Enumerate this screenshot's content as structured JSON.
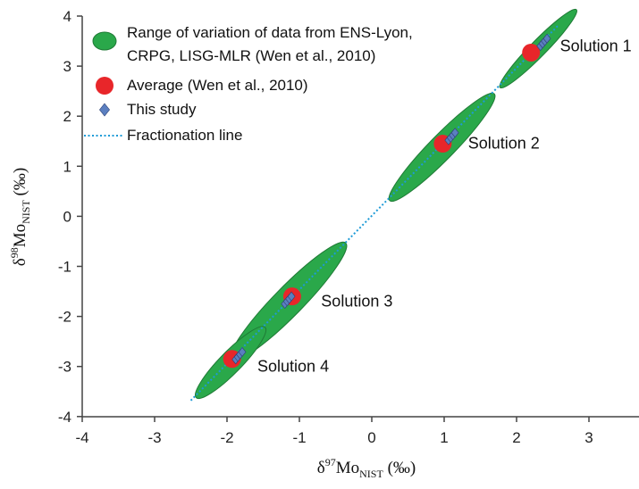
{
  "chart_data": {
    "type": "scatter",
    "xlabel": {
      "prefix": "δ",
      "sup": "97",
      "main": "Mo",
      "sub": "NIST",
      "unit": " (‰)"
    },
    "ylabel": {
      "prefix": "δ",
      "sup": "98",
      "main": "Mo",
      "sub": "NIST",
      "unit": " (‰)"
    },
    "xlim": [
      -4,
      4
    ],
    "ylim": [
      -4,
      4
    ],
    "x_ticks": [
      -4,
      -3,
      -2,
      -1,
      0,
      1,
      2,
      3
    ],
    "y_ticks": [
      -4,
      -3,
      -2,
      -1,
      0,
      1,
      2,
      3,
      4
    ],
    "grid": false,
    "legend_position": "top-left",
    "colors": {
      "range_fill": "#2aa84a",
      "range_stroke": "#1f7a35",
      "average": "#e8262a",
      "this_study": "#5b7fc0",
      "this_study_stroke": "#2c3f73",
      "fractionation_line": "#1e9bd7"
    },
    "legend": [
      {
        "key": "range",
        "lines": [
          "Range of variation of data from ENS-Lyon,",
          "CRPG, LISG-MLR (Wen et al., 2010)"
        ],
        "symbol": "ellipse"
      },
      {
        "key": "average",
        "lines": [
          "Average (Wen et al., 2010)"
        ],
        "symbol": "circle"
      },
      {
        "key": "this_study",
        "lines": [
          "This study"
        ],
        "symbol": "diamond"
      },
      {
        "key": "fractionation_line",
        "lines": [
          "Fractionation line"
        ],
        "symbol": "dotted-line"
      }
    ],
    "fractionation_line": {
      "x": [
        -2.5,
        2.58
      ],
      "y": [
        -3.68,
        3.82
      ]
    },
    "range_ellipses": [
      {
        "name": "Solution 1",
        "cx": 2.3,
        "cy": 3.35,
        "rx": 0.62,
        "ry": 0.11
      },
      {
        "name": "Solution 2",
        "cx": 0.97,
        "cy": 1.38,
        "rx": 0.85,
        "ry": 0.17
      },
      {
        "name": "Solution 3",
        "cx": -1.15,
        "cy": -1.7,
        "rx": 0.93,
        "ry": 0.2
      },
      {
        "name": "Solution 4",
        "cx": -1.95,
        "cy": -2.92,
        "rx": 0.56,
        "ry": 0.15
      }
    ],
    "averages": [
      {
        "name": "Solution 1",
        "x": 2.2,
        "y": 3.27
      },
      {
        "name": "Solution 2",
        "x": 0.98,
        "y": 1.45
      },
      {
        "name": "Solution 3",
        "x": -1.1,
        "y": -1.6
      },
      {
        "name": "Solution 4",
        "x": -1.93,
        "y": -2.85
      }
    ],
    "this_study": [
      {
        "x": 2.33,
        "y": 3.4
      },
      {
        "x": 2.36,
        "y": 3.45
      },
      {
        "x": 2.39,
        "y": 3.5
      },
      {
        "x": 2.42,
        "y": 3.55
      },
      {
        "x": 1.06,
        "y": 1.52
      },
      {
        "x": 1.09,
        "y": 1.57
      },
      {
        "x": 1.12,
        "y": 1.62
      },
      {
        "x": 1.15,
        "y": 1.67
      },
      {
        "x": -1.2,
        "y": -1.75
      },
      {
        "x": -1.17,
        "y": -1.7
      },
      {
        "x": -1.14,
        "y": -1.65
      },
      {
        "x": -1.11,
        "y": -1.6
      },
      {
        "x": -1.88,
        "y": -2.86
      },
      {
        "x": -1.85,
        "y": -2.81
      },
      {
        "x": -1.82,
        "y": -2.76
      },
      {
        "x": -1.79,
        "y": -2.71
      }
    ],
    "annotations": [
      {
        "text": "Solution 1",
        "x": 2.6,
        "y": 3.3
      },
      {
        "text": "Solution 2",
        "x": 1.33,
        "y": 1.35
      },
      {
        "text": "Solution 3",
        "x": -0.7,
        "y": -1.8
      },
      {
        "text": "Solution 4",
        "x": -1.58,
        "y": -3.1
      }
    ]
  }
}
